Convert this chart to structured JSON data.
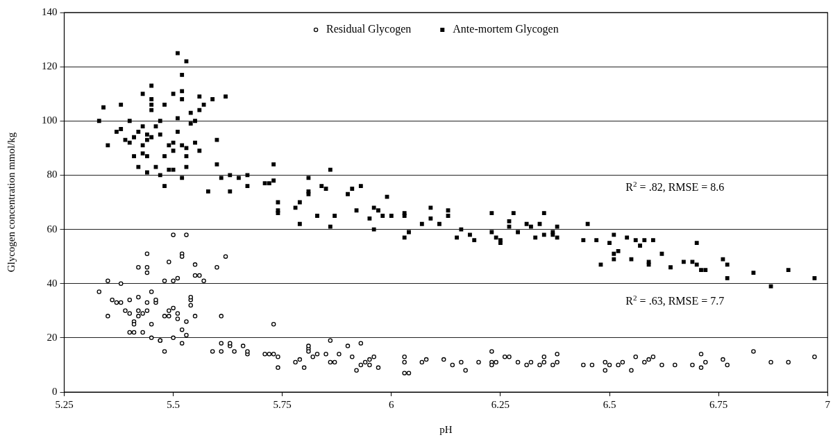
{
  "chart_data": {
    "type": "scatter",
    "xlabel": "pH",
    "ylabel": "Glycogen concentration mmol/kg",
    "xlim": [
      5.25,
      7
    ],
    "xticks": [
      5.25,
      5.5,
      5.75,
      6,
      6.25,
      6.5,
      6.75,
      7
    ],
    "ylim": [
      0,
      140
    ],
    "yticks": [
      0,
      20,
      40,
      60,
      80,
      100,
      120,
      140
    ],
    "grid": "y",
    "legend": "top",
    "annotations": [
      "R$^{2}$ = .82, RMSE = 8.6",
      "R$^{2}$ = .63, RMSE = 7.7"
    ],
    "series": [
      {
        "name": "Residual Glycogen",
        "color": "#000000",
        "marker": "circle",
        "x": [
          5.33,
          5.35,
          5.35,
          5.38,
          5.36,
          5.37,
          5.38,
          5.39,
          5.4,
          5.4,
          5.41,
          5.4,
          5.41,
          5.41,
          5.42,
          5.42,
          5.42,
          5.42,
          5.43,
          5.43,
          5.44,
          5.44,
          5.44,
          5.44,
          5.44,
          5.45,
          5.45,
          5.45,
          5.46,
          5.46,
          5.47,
          5.47,
          5.48,
          5.48,
          5.48,
          5.49,
          5.49,
          5.49,
          5.5,
          5.5,
          5.5,
          5.5,
          5.51,
          5.51,
          5.51,
          5.52,
          5.52,
          5.52,
          5.52,
          5.53,
          5.53,
          5.53,
          5.54,
          5.54,
          5.54,
          5.55,
          5.55,
          5.55,
          5.56,
          5.57,
          5.6,
          5.61,
          5.62,
          5.59,
          5.61,
          5.61,
          5.63,
          5.64,
          5.63,
          5.66,
          5.67,
          5.67,
          5.71,
          5.72,
          5.73,
          5.73,
          5.74,
          5.74,
          5.78,
          5.79,
          5.8,
          5.81,
          5.81,
          5.81,
          5.82,
          5.83,
          5.85,
          5.86,
          5.86,
          5.87,
          5.88,
          5.9,
          5.91,
          5.92,
          5.93,
          5.93,
          5.94,
          5.95,
          5.95,
          5.96,
          5.97,
          6.03,
          6.03,
          6.03,
          6.04,
          6.07,
          6.08,
          6.12,
          6.14,
          6.16,
          6.17,
          6.2,
          6.23,
          6.23,
          6.23,
          6.24,
          6.26,
          6.27,
          6.29,
          6.31,
          6.32,
          6.34,
          6.35,
          6.35,
          6.37,
          6.38,
          6.38,
          6.44,
          6.46,
          6.49,
          6.49,
          6.5,
          6.52,
          6.53,
          6.55,
          6.56,
          6.58,
          6.59,
          6.6,
          6.62,
          6.65,
          6.69,
          6.71,
          6.71,
          6.72,
          6.76,
          6.77,
          6.83,
          6.87,
          6.91,
          6.97
        ],
        "values": [
          37,
          41,
          28,
          40,
          34,
          33,
          33,
          30,
          34,
          29,
          26,
          22,
          22,
          25,
          30,
          35,
          46,
          28,
          29,
          22,
          33,
          44,
          51,
          46,
          30,
          37,
          25,
          20,
          33,
          34,
          19,
          19,
          41,
          28,
          15,
          48,
          30,
          28,
          31,
          20,
          41,
          58,
          42,
          27,
          29,
          51,
          50,
          23,
          18,
          58,
          21,
          26,
          34,
          35,
          32,
          47,
          43,
          28,
          43,
          41,
          46,
          28,
          50,
          15,
          18,
          15,
          17,
          15,
          18,
          17,
          14,
          15,
          14,
          14,
          14,
          25,
          13,
          9,
          11,
          12,
          9,
          16,
          15,
          17,
          13,
          14,
          14,
          19,
          11,
          11,
          14,
          17,
          13,
          8,
          10,
          18,
          11,
          12,
          10,
          13,
          9,
          13,
          11,
          7,
          7,
          11,
          12,
          12,
          10,
          11,
          8,
          11,
          15,
          11,
          10,
          11,
          13,
          13,
          11,
          10,
          11,
          10,
          13,
          11,
          10,
          11,
          14,
          10,
          10,
          11,
          8,
          10,
          10,
          11,
          8,
          13,
          11,
          12,
          13,
          10,
          10,
          10,
          9,
          14,
          11,
          12,
          10,
          15,
          11,
          11,
          13
        ]
      },
      {
        "name": "Ante-mortem Glycogen",
        "color": "#000000",
        "marker": "square",
        "x": [
          5.33,
          5.34,
          5.35,
          5.37,
          5.38,
          5.38,
          5.39,
          5.4,
          5.4,
          5.41,
          5.41,
          5.42,
          5.42,
          5.43,
          5.43,
          5.43,
          5.43,
          5.44,
          5.44,
          5.44,
          5.44,
          5.45,
          5.45,
          5.45,
          5.45,
          5.45,
          5.46,
          5.46,
          5.47,
          5.47,
          5.47,
          5.48,
          5.48,
          5.48,
          5.49,
          5.49,
          5.5,
          5.5,
          5.5,
          5.5,
          5.51,
          5.51,
          5.51,
          5.52,
          5.52,
          5.52,
          5.52,
          5.52,
          5.53,
          5.53,
          5.53,
          5.53,
          5.54,
          5.54,
          5.55,
          5.55,
          5.56,
          5.56,
          5.56,
          5.57,
          5.58,
          5.59,
          5.6,
          5.6,
          5.61,
          5.62,
          5.63,
          5.63,
          5.65,
          5.67,
          5.67,
          5.71,
          5.72,
          5.73,
          5.73,
          5.74,
          5.74,
          5.74,
          5.78,
          5.79,
          5.79,
          5.81,
          5.81,
          5.81,
          5.83,
          5.84,
          5.85,
          5.86,
          5.86,
          5.87,
          5.9,
          5.91,
          5.92,
          5.93,
          5.95,
          5.96,
          5.96,
          5.97,
          5.98,
          5.99,
          6.0,
          6.03,
          6.03,
          6.03,
          6.04,
          6.07,
          6.09,
          6.09,
          6.11,
          6.13,
          6.13,
          6.15,
          6.16,
          6.18,
          6.19,
          6.23,
          6.23,
          6.24,
          6.25,
          6.25,
          6.27,
          6.27,
          6.28,
          6.29,
          6.31,
          6.32,
          6.33,
          6.34,
          6.35,
          6.35,
          6.37,
          6.37,
          6.38,
          6.38,
          6.44,
          6.45,
          6.47,
          6.48,
          6.5,
          6.51,
          6.51,
          6.51,
          6.52,
          6.54,
          6.55,
          6.56,
          6.57,
          6.58,
          6.59,
          6.59,
          6.6,
          6.62,
          6.64,
          6.67,
          6.69,
          6.7,
          6.7,
          6.71,
          6.72,
          6.76,
          6.77,
          6.77,
          6.83,
          6.87,
          6.91,
          6.97
        ],
        "values": [
          100,
          105,
          91,
          96,
          106,
          97,
          93,
          100,
          92,
          87,
          94,
          83,
          96,
          88,
          110,
          91,
          98,
          95,
          93,
          87,
          81,
          113,
          108,
          104,
          106,
          94,
          98,
          83,
          80,
          100,
          95,
          87,
          76,
          106,
          82,
          91,
          82,
          110,
          89,
          92,
          125,
          96,
          101,
          117,
          111,
          108,
          91,
          79,
          122,
          90,
          87,
          83,
          99,
          103,
          92,
          100,
          109,
          104,
          89,
          106,
          74,
          108,
          93,
          84,
          79,
          109,
          74,
          80,
          79,
          76,
          80,
          77,
          77,
          84,
          78,
          70,
          67,
          66,
          68,
          62,
          70,
          79,
          74,
          73,
          65,
          76,
          75,
          61,
          82,
          65,
          73,
          75,
          67,
          76,
          64,
          68,
          60,
          67,
          65,
          72,
          65,
          66,
          65,
          57,
          59,
          62,
          64,
          68,
          62,
          67,
          65,
          57,
          60,
          58,
          56,
          66,
          59,
          57,
          56,
          55,
          63,
          61,
          66,
          59,
          62,
          61,
          57,
          62,
          66,
          58,
          59,
          58,
          61,
          57,
          56,
          62,
          56,
          47,
          55,
          58,
          51,
          49,
          52,
          57,
          49,
          56,
          54,
          56,
          48,
          47,
          56,
          51,
          46,
          48,
          48,
          55,
          47,
          45,
          45,
          49,
          47,
          42,
          44,
          39,
          45,
          42
        ]
      }
    ]
  }
}
